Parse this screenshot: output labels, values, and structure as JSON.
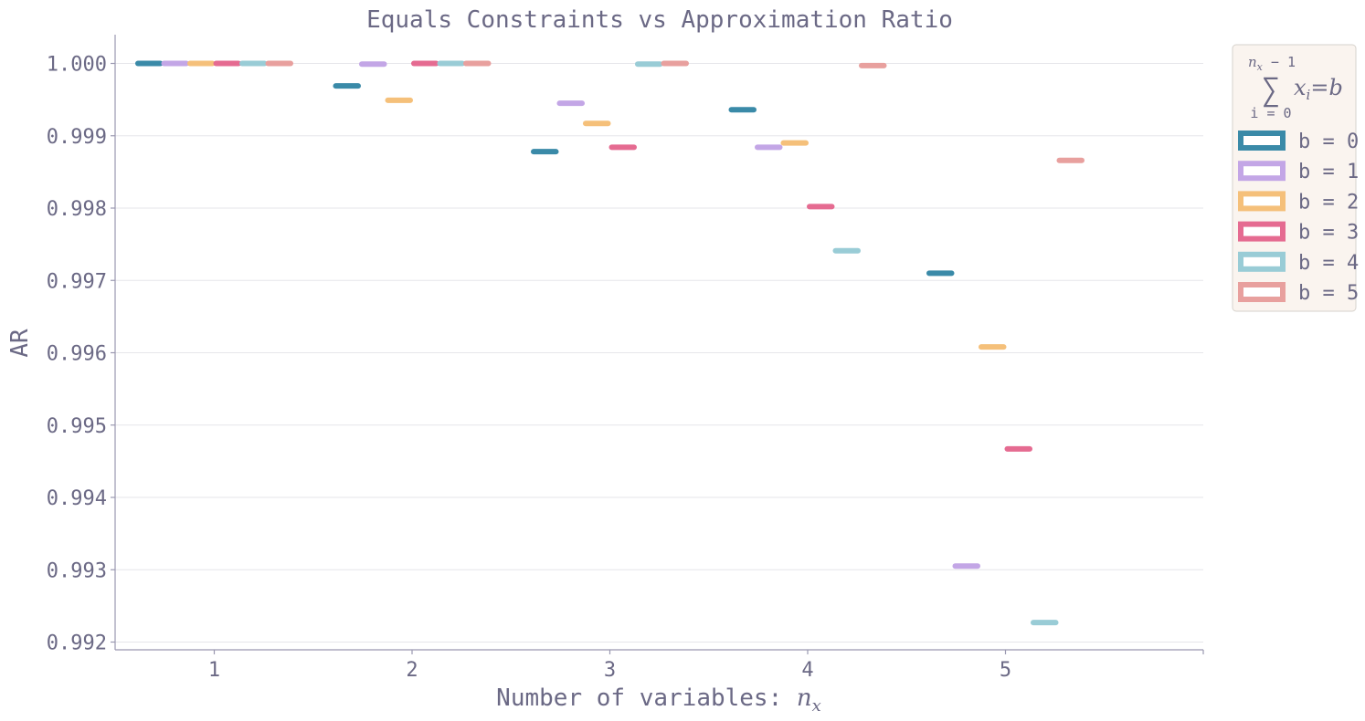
{
  "chart_data": {
    "type": "bar",
    "title": "Equals Constraints vs Approximation Ratio",
    "xlabel": "Number of variables: ",
    "xlabel_symbol": "n",
    "xlabel_subscript": "x",
    "ylabel": "AR",
    "categories": [
      "1",
      "2",
      "3",
      "4",
      "5"
    ],
    "ylim": [
      0.992,
      1.0004
    ],
    "yticks": [
      "0.992",
      "0.993",
      "0.994",
      "0.995",
      "0.996",
      "0.997",
      "0.998",
      "0.999",
      "1.000"
    ],
    "grid": "horizontal",
    "legend_placement": "outside-top-right",
    "legend_title": {
      "sum_top": "n",
      "sum_top_sub": "x",
      "sum_top_rest": " − 1",
      "sum_symbol": "∑",
      "sum_bottom": "i = 0",
      "term": "x",
      "term_sub": "i",
      "equals": "=b"
    },
    "series": [
      {
        "name": "b = 0",
        "values": [
          1.0,
          0.99969,
          0.99878,
          0.99936,
          0.9971
        ],
        "color": "#3a8aa8"
      },
      {
        "name": "b = 1",
        "values": [
          1.0,
          0.99999,
          0.99945,
          0.99884,
          0.99305
        ],
        "color": "#c3a6e6"
      },
      {
        "name": "b = 2",
        "values": [
          1.0,
          0.99949,
          0.99917,
          0.9989,
          0.99608
        ],
        "color": "#f5c07a"
      },
      {
        "name": "b = 3",
        "values": [
          1.0,
          1.0,
          0.99884,
          0.99802,
          0.99467
        ],
        "color": "#e56b91"
      },
      {
        "name": "b = 4",
        "values": [
          1.0,
          1.0,
          0.99999,
          0.99741,
          0.99227
        ],
        "color": "#99ccd6"
      },
      {
        "name": "b = 5",
        "values": [
          1.0,
          1.0,
          1.0,
          0.99997,
          0.99866
        ],
        "color": "#e8a09e"
      }
    ]
  }
}
